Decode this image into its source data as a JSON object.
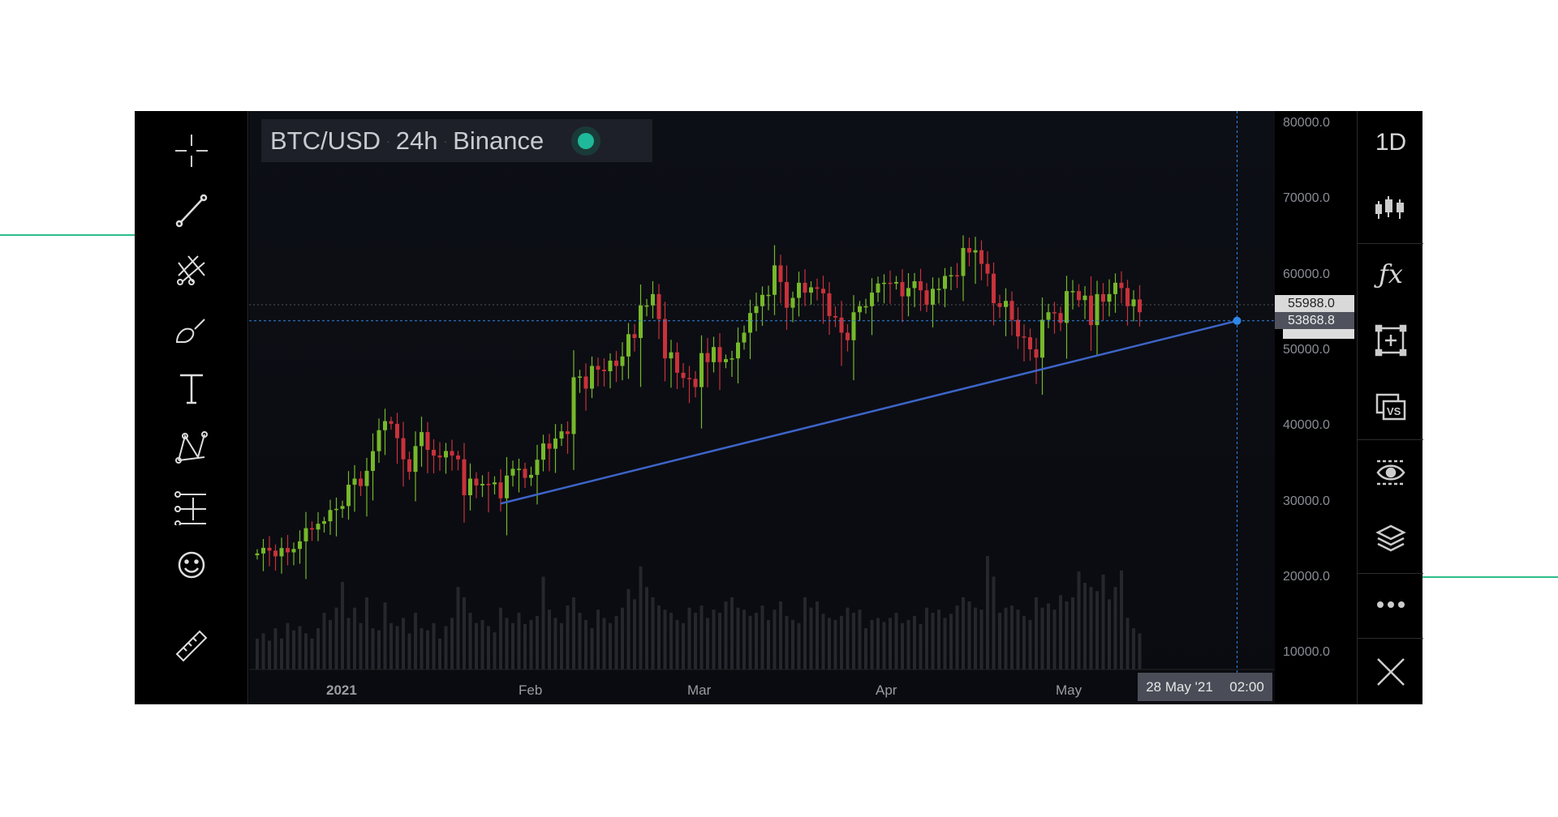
{
  "header": {
    "symbol": "BTC/USD",
    "interval": "24h",
    "exchange": "Binance",
    "status_color": "#1fb89a"
  },
  "price_axis": {
    "labels": [
      "80000.0",
      "70000.0",
      "60000.0",
      "50000.0",
      "40000.0",
      "30000.0",
      "20000.0",
      "10000.0"
    ],
    "tag_high": "55988.0",
    "tag_cursor": "53868.8"
  },
  "time_axis": {
    "labels": [
      "2021",
      "Feb",
      "Mar",
      "Apr",
      "May"
    ],
    "cursor_date": "28 May '21",
    "cursor_time": "02:00"
  },
  "left_toolbar": [
    "crosshair-icon",
    "trend-line-icon",
    "fork-icon",
    "brush-icon",
    "text-icon",
    "pattern-icon",
    "measure-arrows-icon",
    "emoji-icon",
    "ruler-icon"
  ],
  "right_toolbar": {
    "interval_label": "1D",
    "items": [
      "candles-icon",
      "fx-icon",
      "add-frame-icon",
      "compare-vs-icon",
      "eye-icon",
      "layers-icon",
      "more-icon",
      "close-icon"
    ]
  },
  "colors": {
    "up": "#76b82a",
    "down": "#c8323a",
    "trend": "#3d64c8",
    "cursor": "#2f86e6",
    "volume": "#26272c"
  },
  "chart_data": {
    "type": "candlestick",
    "start_date": "2020-12-18",
    "closes": [
      23100,
      23850,
      23480,
      22720,
      23820,
      23250,
      23700,
      24700,
      26450,
      26270,
      27030,
      27360,
      28850,
      29000,
      29370,
      32190,
      33000,
      32020,
      34030,
      36630,
      39400,
      40600,
      40250,
      38350,
      35550,
      33900,
      37300,
      39150,
      36800,
      36050,
      35800,
      36650,
      36050,
      35550,
      30800,
      33000,
      32100,
      32300,
      32250,
      32500,
      30400,
      33400,
      34300,
      34300,
      33100,
      33500,
      35500,
      37650,
      36950,
      38300,
      39250,
      38900,
      46400,
      46500,
      44900,
      47900,
      47400,
      47200,
      48600,
      47900,
      49150,
      52100,
      51600,
      55900,
      55900,
      57400,
      54100,
      48900,
      49700,
      47000,
      46300,
      46200,
      45100,
      49600,
      48400,
      50400,
      48400,
      48800,
      48900,
      51000,
      52300,
      54900,
      55800,
      57300,
      57300,
      61200,
      59000,
      55600,
      56900,
      58900,
      57600,
      58300,
      58100,
      57500,
      54500,
      54300,
      52300,
      51300,
      55000,
      55800,
      55800,
      57600,
      58800,
      58900,
      58800,
      59000,
      57100,
      58200,
      59100,
      57900,
      56000,
      58100,
      58100,
      59800,
      59900,
      59800,
      63500,
      62900,
      63200,
      61400,
      60100,
      56200,
      55700,
      56500,
      54000,
      51800,
      51700,
      50100,
      49000,
      54000,
      55000,
      54900,
      53600,
      57800,
      57800,
      56600,
      57200,
      53300,
      57400,
      56400,
      57400,
      58900,
      58200,
      55800,
      56700,
      55000
    ],
    "volumes": [
      30,
      35,
      28,
      40,
      30,
      45,
      38,
      42,
      35,
      30,
      40,
      55,
      48,
      60,
      85,
      50,
      60,
      45,
      70,
      40,
      38,
      65,
      45,
      42,
      50,
      35,
      55,
      40,
      38,
      45,
      30,
      42,
      50,
      80,
      70,
      55,
      45,
      48,
      42,
      36,
      60,
      50,
      45,
      55,
      44,
      48,
      52,
      90,
      58,
      50,
      45,
      62,
      70,
      55,
      48,
      40,
      58,
      50,
      45,
      52,
      60,
      78,
      68,
      100,
      80,
      70,
      62,
      58,
      55,
      48,
      45,
      60,
      55,
      62,
      50,
      58,
      55,
      66,
      70,
      60,
      58,
      52,
      55,
      62,
      48,
      58,
      66,
      52,
      48,
      45,
      70,
      60,
      66,
      54,
      50,
      48,
      52,
      60,
      55,
      58,
      40,
      48,
      50,
      46,
      50,
      55,
      45,
      48,
      52,
      44,
      60,
      55,
      58,
      50,
      54,
      62,
      70,
      66,
      60,
      58,
      110,
      90,
      55,
      60,
      62,
      58,
      52,
      48,
      70,
      60,
      64,
      58,
      72,
      66,
      70,
      95,
      84,
      80,
      76,
      92,
      68,
      80,
      96,
      50,
      40,
      35
    ],
    "ylim": [
      8000,
      82000
    ],
    "trendline": [
      {
        "date": "2021-01-27",
        "price": 29700
      },
      {
        "date": "2021-05-28",
        "price": 53868.8
      }
    ],
    "crosshair": {
      "date": "2021-05-28",
      "price": 53868.8
    },
    "dotted_level": 55988.0
  }
}
